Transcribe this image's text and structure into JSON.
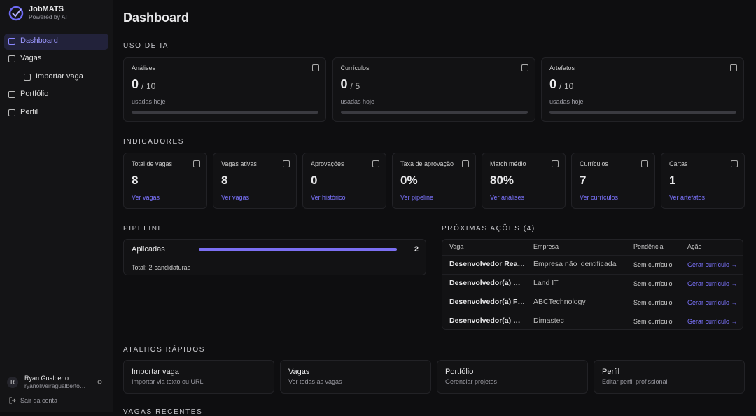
{
  "sidebar": {
    "brand": "JobMATS",
    "tagline": "Powered by AI",
    "nav": [
      {
        "label": "Dashboard",
        "active": true,
        "sub": false
      },
      {
        "label": "Vagas",
        "active": false,
        "sub": false
      },
      {
        "label": "Importar vaga",
        "active": false,
        "sub": true
      },
      {
        "label": "Portfólio",
        "active": false,
        "sub": false
      },
      {
        "label": "Perfil",
        "active": false,
        "sub": false
      }
    ],
    "user": {
      "initial": "R",
      "name": "Ryan Gualberto",
      "email": "ryanoliveiragualberto…"
    },
    "logout": "Sair da conta"
  },
  "header": {
    "title": "Dashboard"
  },
  "usage": {
    "title": "USO DE IA",
    "separator": "/",
    "cards": [
      {
        "label": "Análises",
        "used": 0,
        "limit": 10,
        "note": "usadas hoje"
      },
      {
        "label": "Currículos",
        "used": 0,
        "limit": 5,
        "note": "usadas hoje"
      },
      {
        "label": "Artefatos",
        "used": 0,
        "limit": 10,
        "note": "usadas hoje"
      }
    ]
  },
  "indicators": {
    "title": "INDICADORES",
    "cards": [
      {
        "label": "Total de vagas",
        "value": 8,
        "link": "Ver vagas"
      },
      {
        "label": "Vagas ativas",
        "value": 8,
        "link": "Ver vagas"
      },
      {
        "label": "Aprovações",
        "value": 0,
        "link": "Ver histórico"
      },
      {
        "label": "Taxa de aprovação",
        "value": 0,
        "value_label": "0%",
        "link": "Ver pipeline"
      },
      {
        "label": "Match médio",
        "value": 80,
        "value_label": "80%",
        "link": "Ver análises"
      },
      {
        "label": "Currículos",
        "value": 7,
        "link": "Ver currículos"
      },
      {
        "label": "Cartas",
        "value": 1,
        "link": "Ver artefatos"
      }
    ]
  },
  "pipeline": {
    "title": "PIPELINE",
    "stages": [
      {
        "label": "Aplicadas",
        "count": 2
      }
    ],
    "total_prefix": "Total:",
    "total": 2,
    "total_suffix": "candidaturas"
  },
  "next_actions": {
    "title": "PRÓXIMAS AÇÕES (4)",
    "columns": [
      "Vaga",
      "Empresa",
      "Pendência",
      "Ação"
    ],
    "rows": [
      [
        "Desenvolvedor Rea…",
        "Empresa não identificada",
        "Sem currículo",
        "Gerar currículo →"
      ],
      [
        "Desenvolvedor(a) …",
        "Land IT",
        "Sem currículo",
        "Gerar currículo →"
      ],
      [
        "Desenvolvedor(a) F…",
        "ABCTechnology",
        "Sem currículo",
        "Gerar currículo →"
      ],
      [
        "Desenvolvedor(a) …",
        "Dimastec",
        "Sem currículo",
        "Gerar currículo →"
      ]
    ]
  },
  "shortcuts": {
    "title": "ATALHOS RÁPIDOS",
    "cards": [
      {
        "title": "Importar vaga",
        "subtitle": "Importar via texto ou URL"
      },
      {
        "title": "Vagas",
        "subtitle": "Ver todas as vagas"
      },
      {
        "title": "Portfólio",
        "subtitle": "Gerenciar projetos"
      },
      {
        "title": "Perfil",
        "subtitle": "Editar perfil profissional"
      }
    ]
  },
  "recent": {
    "title": "VAGAS RECENTES"
  }
}
